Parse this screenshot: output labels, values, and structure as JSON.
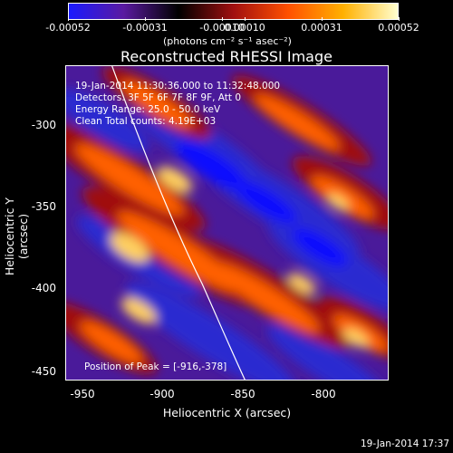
{
  "title": "Reconstructed RHESSI Image",
  "colorbar": {
    "ticks": [
      "-0.00052",
      "-0.00031",
      "-0.00010",
      "0.00010",
      "0.00031",
      "0.00052"
    ],
    "units": "(photons cm⁻² s⁻¹ asec⁻²)",
    "colors": [
      "#1a1aff",
      "#5a1aa0",
      "#000000",
      "#a01010",
      "#ff5000",
      "#ffb000",
      "#ffffd0"
    ]
  },
  "annotations": {
    "time_range": "19-Jan-2014 11:30:36.000 to 11:32:48.000",
    "detectors": "Detectors: 3F 5F 6F 7F 8F 9F, Att 0",
    "energy": "Energy Range: 25.0 - 50.0 keV",
    "clean": "Clean   Total counts: 4.19E+03",
    "peak": "Position of Peak = [-916,-378]"
  },
  "axes": {
    "xlabel": "Heliocentric X (arcsec)",
    "ylabel": "Heliocentric Y (arcsec)",
    "xticks": [
      "-950",
      "-900",
      "-850",
      "-800"
    ],
    "yticks": [
      "-300",
      "-350",
      "-400",
      "-450"
    ]
  },
  "timestamp": "19-Jan-2014 17:37"
}
